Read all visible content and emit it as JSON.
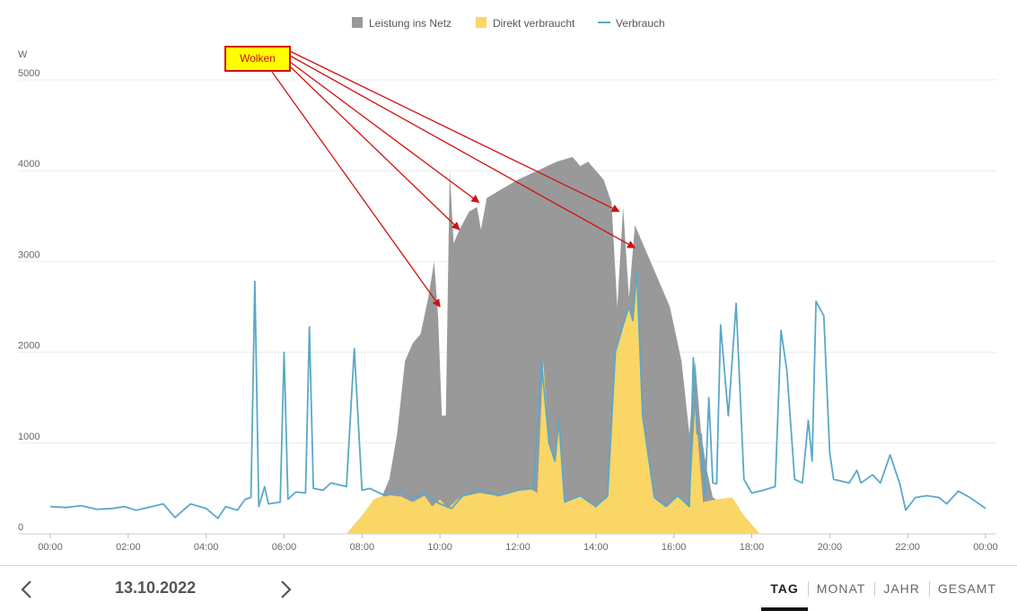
{
  "chart_data": {
    "type": "area",
    "unit": "W",
    "ylim": [
      0,
      5000
    ],
    "xlim": [
      "00:00",
      "24:00"
    ],
    "yticks": [
      0,
      1000,
      2000,
      3000,
      4000,
      5000
    ],
    "xticks": [
      "00:00",
      "02:00",
      "04:00",
      "06:00",
      "08:00",
      "10:00",
      "12:00",
      "14:00",
      "16:00",
      "18:00",
      "20:00",
      "22:00",
      "00:00"
    ],
    "legend_position": "top-center",
    "grid": true,
    "series": [
      {
        "name": "Leistung ins Netz",
        "kind": "area",
        "color": "#999999",
        "points": [
          [
            7.6,
            0
          ],
          [
            8.0,
            200
          ],
          [
            8.5,
            400
          ],
          [
            8.7,
            600
          ],
          [
            8.9,
            1100
          ],
          [
            9.1,
            1900
          ],
          [
            9.3,
            2100
          ],
          [
            9.5,
            2200
          ],
          [
            9.7,
            2600
          ],
          [
            9.85,
            3000
          ],
          [
            9.95,
            2400
          ],
          [
            10.05,
            1300
          ],
          [
            10.15,
            1300
          ],
          [
            10.25,
            4000
          ],
          [
            10.35,
            3200
          ],
          [
            10.5,
            3350
          ],
          [
            10.75,
            3550
          ],
          [
            10.95,
            3600
          ],
          [
            11.05,
            3350
          ],
          [
            11.2,
            3700
          ],
          [
            11.6,
            3800
          ],
          [
            12.0,
            3900
          ],
          [
            12.5,
            4000
          ],
          [
            13.0,
            4100
          ],
          [
            13.4,
            4150
          ],
          [
            13.6,
            4050
          ],
          [
            13.8,
            4100
          ],
          [
            14.0,
            4000
          ],
          [
            14.2,
            3900
          ],
          [
            14.4,
            3650
          ],
          [
            14.55,
            2500
          ],
          [
            14.7,
            3600
          ],
          [
            14.85,
            2600
          ],
          [
            15.0,
            3400
          ],
          [
            15.3,
            3100
          ],
          [
            15.6,
            2800
          ],
          [
            15.9,
            2500
          ],
          [
            16.2,
            1900
          ],
          [
            16.4,
            1100
          ],
          [
            16.55,
            1900
          ],
          [
            16.7,
            1100
          ],
          [
            16.85,
            700
          ],
          [
            17.0,
            400
          ],
          [
            17.2,
            350
          ],
          [
            17.45,
            380
          ],
          [
            17.8,
            200
          ],
          [
            18.2,
            0
          ]
        ]
      },
      {
        "name": "Direkt verbraucht",
        "kind": "area",
        "color": "#fad666",
        "points": [
          [
            7.6,
            0
          ],
          [
            8.0,
            200
          ],
          [
            8.3,
            380
          ],
          [
            8.6,
            430
          ],
          [
            9.0,
            410
          ],
          [
            9.3,
            350
          ],
          [
            9.6,
            420
          ],
          [
            9.8,
            300
          ],
          [
            10.0,
            380
          ],
          [
            10.2,
            280
          ],
          [
            10.5,
            400
          ],
          [
            11.0,
            450
          ],
          [
            11.5,
            420
          ],
          [
            12.0,
            480
          ],
          [
            12.3,
            500
          ],
          [
            12.5,
            450
          ],
          [
            12.65,
            1900
          ],
          [
            12.8,
            1000
          ],
          [
            12.95,
            800
          ],
          [
            13.05,
            1250
          ],
          [
            13.2,
            350
          ],
          [
            13.6,
            420
          ],
          [
            14.0,
            300
          ],
          [
            14.3,
            400
          ],
          [
            14.5,
            2000
          ],
          [
            14.7,
            2300
          ],
          [
            14.85,
            2500
          ],
          [
            14.95,
            2350
          ],
          [
            15.05,
            2900
          ],
          [
            15.2,
            1300
          ],
          [
            15.5,
            400
          ],
          [
            15.8,
            300
          ],
          [
            16.1,
            420
          ],
          [
            16.4,
            300
          ],
          [
            16.55,
            1400
          ],
          [
            16.75,
            350
          ],
          [
            17.1,
            380
          ],
          [
            17.5,
            400
          ],
          [
            17.8,
            200
          ],
          [
            18.2,
            0
          ]
        ]
      },
      {
        "name": "Verbrauch",
        "kind": "line",
        "color": "#5aa8c8",
        "points": [
          [
            0,
            300
          ],
          [
            0.4,
            290
          ],
          [
            0.8,
            310
          ],
          [
            1.2,
            270
          ],
          [
            1.6,
            280
          ],
          [
            1.9,
            300
          ],
          [
            2.2,
            260
          ],
          [
            2.5,
            290
          ],
          [
            2.9,
            330
          ],
          [
            3.2,
            180
          ],
          [
            3.6,
            330
          ],
          [
            4.0,
            280
          ],
          [
            4.3,
            170
          ],
          [
            4.5,
            300
          ],
          [
            4.8,
            260
          ],
          [
            5.0,
            380
          ],
          [
            5.15,
            400
          ],
          [
            5.25,
            2780
          ],
          [
            5.35,
            300
          ],
          [
            5.5,
            520
          ],
          [
            5.6,
            330
          ],
          [
            5.9,
            350
          ],
          [
            6.0,
            2000
          ],
          [
            6.1,
            380
          ],
          [
            6.3,
            460
          ],
          [
            6.55,
            450
          ],
          [
            6.65,
            2280
          ],
          [
            6.75,
            500
          ],
          [
            7.0,
            480
          ],
          [
            7.2,
            560
          ],
          [
            7.6,
            520
          ],
          [
            7.8,
            2040
          ],
          [
            8.0,
            480
          ],
          [
            8.2,
            500
          ],
          [
            8.6,
            420
          ],
          [
            9.0,
            480
          ],
          [
            9.3,
            380
          ],
          [
            9.6,
            450
          ],
          [
            10.0,
            330
          ],
          [
            10.3,
            280
          ],
          [
            10.6,
            430
          ],
          [
            11.0,
            480
          ],
          [
            11.5,
            420
          ],
          [
            12.0,
            480
          ],
          [
            12.4,
            500
          ],
          [
            12.6,
            1900
          ],
          [
            12.8,
            1000
          ],
          [
            12.95,
            800
          ],
          [
            13.05,
            1250
          ],
          [
            13.2,
            350
          ],
          [
            13.6,
            420
          ],
          [
            14.0,
            300
          ],
          [
            14.3,
            420
          ],
          [
            14.5,
            2000
          ],
          [
            14.7,
            2300
          ],
          [
            14.85,
            2500
          ],
          [
            14.95,
            2350
          ],
          [
            15.05,
            2900
          ],
          [
            15.2,
            1300
          ],
          [
            15.5,
            400
          ],
          [
            15.8,
            300
          ],
          [
            16.1,
            420
          ],
          [
            16.4,
            300
          ],
          [
            16.5,
            1940
          ],
          [
            16.6,
            1100
          ],
          [
            16.7,
            1100
          ],
          [
            16.8,
            400
          ],
          [
            16.9,
            1500
          ],
          [
            17.0,
            560
          ],
          [
            17.1,
            550
          ],
          [
            17.2,
            2300
          ],
          [
            17.4,
            1300
          ],
          [
            17.6,
            2540
          ],
          [
            17.8,
            600
          ],
          [
            18.0,
            450
          ],
          [
            18.3,
            480
          ],
          [
            18.6,
            520
          ],
          [
            18.75,
            2240
          ],
          [
            18.9,
            1800
          ],
          [
            19.1,
            600
          ],
          [
            19.3,
            560
          ],
          [
            19.45,
            1250
          ],
          [
            19.55,
            800
          ],
          [
            19.65,
            2560
          ],
          [
            19.85,
            2400
          ],
          [
            20.0,
            900
          ],
          [
            20.1,
            600
          ],
          [
            20.5,
            560
          ],
          [
            20.7,
            700
          ],
          [
            20.8,
            560
          ],
          [
            21.1,
            650
          ],
          [
            21.3,
            560
          ],
          [
            21.55,
            870
          ],
          [
            21.8,
            550
          ],
          [
            21.95,
            260
          ],
          [
            22.2,
            400
          ],
          [
            22.5,
            420
          ],
          [
            22.8,
            400
          ],
          [
            23.0,
            330
          ],
          [
            23.3,
            470
          ],
          [
            23.6,
            400
          ],
          [
            24.0,
            280
          ]
        ]
      }
    ],
    "annotation": {
      "label": "Wolken",
      "targets": [
        [
          10.0,
          2500
        ],
        [
          10.5,
          3350
        ],
        [
          11.0,
          3650
        ],
        [
          14.6,
          3550
        ],
        [
          15.0,
          3150
        ]
      ]
    }
  },
  "footer": {
    "date": "13.10.2022",
    "prev_icon": "chevron-left-icon",
    "next_icon": "chevron-right-icon",
    "tabs": [
      "TAG",
      "MONAT",
      "JAHR",
      "GESAMT"
    ],
    "active_tab": "TAG"
  }
}
